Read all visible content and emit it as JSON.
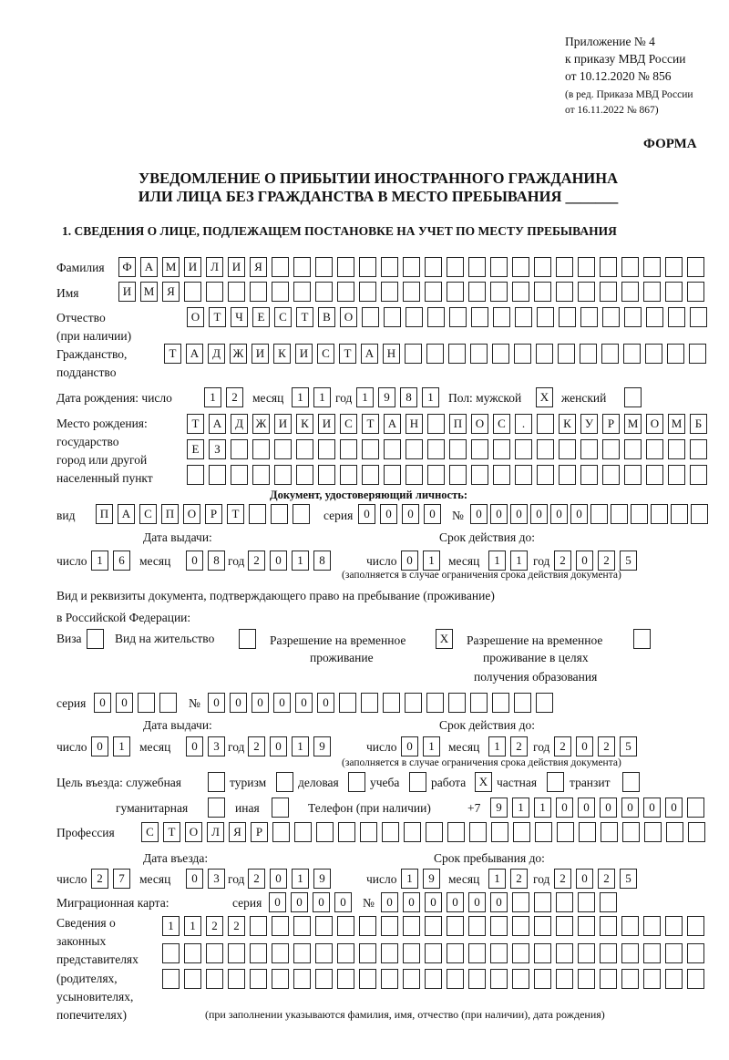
{
  "header": {
    "l1": "Приложение № 4",
    "l2": "к приказу МВД России",
    "l3": "от 10.12.2020 № 856",
    "l4": "(в ред. Приказа МВД России",
    "l5": "от 16.11.2022 № 867)",
    "forma": "ФОРМА"
  },
  "title": {
    "l1": "УВЕДОМЛЕНИЕ О ПРИБЫТИИ ИНОСТРАННОГО ГРАЖДАНИНА",
    "l2": "ИЛИ ЛИЦА БЕЗ ГРАЖДАНСТВА В МЕСТО ПРЕБЫВАНИЯ _______"
  },
  "section1": "1. СВЕДЕНИЯ О ЛИЦЕ, ПОДЛЕЖАЩЕМ ПОСТАНОВКЕ НА УЧЕТ ПО МЕСТУ ПРЕБЫВАНИЯ",
  "labels": {
    "surname": "Фамилия",
    "name": "Имя",
    "patronymic": "Отчество",
    "if_any": "(при наличии)",
    "citizenship": "Гражданство,",
    "subject": "подданство",
    "birth_date": "Дата рождения:  число",
    "day": "число",
    "month": "месяц",
    "year": "год",
    "sex_male": "Пол: мужской",
    "sex_female": "женский",
    "birthplace1": "Место рождения:",
    "birthplace2": "государство",
    "birthplace3": "город или другой",
    "birthplace4": "населенный пункт",
    "id_doc": "Документ, удостоверяющий личность:",
    "kind": "вид",
    "series": "серия",
    "number": "№",
    "issue_date": "Дата выдачи:",
    "valid_until": "Срок действия до:",
    "note_validity": "(заполняется в случае ограничения срока действия документа)",
    "right_doc1": "Вид и реквизиты документа, подтверждающего право на пребывание (проживание)",
    "right_doc2": "в Российской Федерации:",
    "visa": "Виза",
    "residence": "Вид на жительство",
    "temp1": "Разрешение на временное",
    "temp2": "проживание",
    "edu1": "Разрешение на временное",
    "edu2": "проживание в целях",
    "edu3": "получения образования",
    "purpose": "Цель въезда: служебная",
    "tourism": "туризм",
    "business": "деловая",
    "study": "учеба",
    "work": "работа",
    "private": "частная",
    "transit": "транзит",
    "humanitarian": "гуманитарная",
    "other": "иная",
    "phone": "Телефон (при наличии)",
    "phone_prefix": "+7",
    "profession": "Профессия",
    "entry_date": "Дата въезда:",
    "stay_until": "Срок пребывания до:",
    "migration_card": "Миграционная карта:",
    "reps1": "Сведения о",
    "reps2": "законных",
    "reps3": "представителях",
    "reps4": "(родителях,",
    "reps5": "усыновителях,",
    "reps6": "попечителях)",
    "reps_note": "(при заполнении указываются фамилия, имя, отчество (при наличии), дата рождения)"
  },
  "fields": {
    "surname": {
      "v": "ФАМИЛИЯ",
      "n": 27
    },
    "name": {
      "v": "ИМЯ",
      "n": 27
    },
    "patronymic": {
      "v": "ОТЧЕСТВО",
      "n": 24
    },
    "citizenship": {
      "v": "ТАДЖИКИСТАН",
      "n": 25
    },
    "birth_day": {
      "v": "12",
      "n": 2
    },
    "birth_month": {
      "v": "11",
      "n": 2
    },
    "birth_year": {
      "v": "1981",
      "n": 4
    },
    "male": {
      "v": "X",
      "n": 1
    },
    "female": {
      "v": "",
      "n": 1
    },
    "birthplace1": {
      "v": "ТАДЖИКИСТАН ПОС. КУРМОМБ",
      "n": 24
    },
    "birthplace2": {
      "v": "ЕЗ",
      "n": 24
    },
    "birthplace3": {
      "v": "",
      "n": 24
    },
    "id_kind": {
      "v": "ПАСПОРТ",
      "n": 10
    },
    "id_series": {
      "v": "0000",
      "n": 4
    },
    "id_number": {
      "v": "000000",
      "n": 12
    },
    "id_issue_day": {
      "v": "16",
      "n": 2
    },
    "id_issue_month": {
      "v": "08",
      "n": 2
    },
    "id_issue_year": {
      "v": "2018",
      "n": 4
    },
    "id_valid_day": {
      "v": "01",
      "n": 2
    },
    "id_valid_month": {
      "v": "11",
      "n": 2
    },
    "id_valid_year": {
      "v": "2025",
      "n": 4
    },
    "visa": {
      "v": "",
      "n": 1
    },
    "residence": {
      "v": "",
      "n": 1
    },
    "temp": {
      "v": "X",
      "n": 1
    },
    "edu": {
      "v": "",
      "n": 1
    },
    "rd_series": {
      "v": "00",
      "n": 4
    },
    "rd_number": {
      "v": "000000",
      "n": 16
    },
    "rd_issue_day": {
      "v": "01",
      "n": 2
    },
    "rd_issue_month": {
      "v": "03",
      "n": 2
    },
    "rd_issue_year": {
      "v": "2019",
      "n": 4
    },
    "rd_valid_day": {
      "v": "01",
      "n": 2
    },
    "rd_valid_month": {
      "v": "12",
      "n": 2
    },
    "rd_valid_year": {
      "v": "2025",
      "n": 4
    },
    "p_service": {
      "v": "",
      "n": 1
    },
    "p_tourism": {
      "v": "",
      "n": 1
    },
    "p_business": {
      "v": "",
      "n": 1
    },
    "p_study": {
      "v": "",
      "n": 1
    },
    "p_work": {
      "v": "X",
      "n": 1
    },
    "p_private": {
      "v": "",
      "n": 1
    },
    "p_transit": {
      "v": "",
      "n": 1
    },
    "p_humanitarian": {
      "v": "",
      "n": 1
    },
    "p_other": {
      "v": "",
      "n": 1
    },
    "phone": {
      "v": "911000000",
      "n": 10
    },
    "profession": {
      "v": "СТОЛЯР",
      "n": 26
    },
    "entry_day": {
      "v": "27",
      "n": 2
    },
    "entry_month": {
      "v": "03",
      "n": 2
    },
    "entry_year": {
      "v": "2019",
      "n": 4
    },
    "stay_day": {
      "v": "19",
      "n": 2
    },
    "stay_month": {
      "v": "12",
      "n": 2
    },
    "stay_year": {
      "v": "2025",
      "n": 4
    },
    "mc_series": {
      "v": "0000",
      "n": 4
    },
    "mc_number": {
      "v": "000000",
      "n": 11
    },
    "reps1": {
      "v": "1122",
      "n": 25
    },
    "reps2": {
      "v": "",
      "n": 25
    },
    "reps3": {
      "v": "",
      "n": 25
    }
  }
}
